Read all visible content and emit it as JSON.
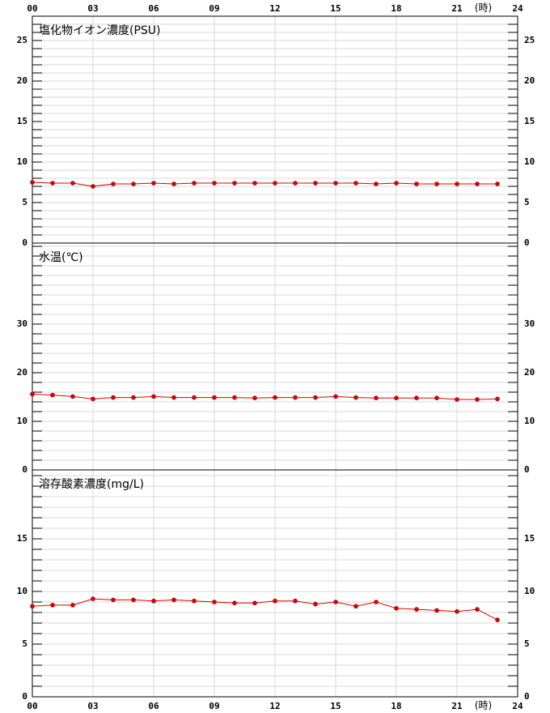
{
  "chart_data": [
    {
      "type": "line",
      "title": "塩化物イオン濃度(PSU)",
      "color": "#e00000",
      "x": [
        0,
        1,
        2,
        3,
        4,
        5,
        6,
        7,
        8,
        9,
        10,
        11,
        12,
        13,
        14,
        15,
        16,
        17,
        18,
        19,
        20,
        21,
        22,
        23
      ],
      "values": [
        7.5,
        7.4,
        7.4,
        7.0,
        7.3,
        7.3,
        7.4,
        7.3,
        7.4,
        7.4,
        7.4,
        7.4,
        7.4,
        7.4,
        7.4,
        7.4,
        7.4,
        7.3,
        7.4,
        7.3,
        7.3,
        7.3,
        7.3,
        7.3
      ],
      "xlim": [
        0,
        24
      ],
      "xticks": [
        {
          "value": 0,
          "label": "00"
        },
        {
          "value": 3,
          "label": "03"
        },
        {
          "value": 6,
          "label": "06"
        },
        {
          "value": 9,
          "label": "09"
        },
        {
          "value": 12,
          "label": "12"
        },
        {
          "value": 15,
          "label": "15"
        },
        {
          "value": 18,
          "label": "18"
        },
        {
          "value": 21,
          "label": "21"
        },
        24
      ],
      "x_unit": "(時)",
      "ylim": [
        0,
        28
      ],
      "yticks": [
        0,
        5,
        10,
        15,
        20,
        25
      ],
      "minor_yticks": [
        1,
        2,
        3,
        4,
        6,
        7,
        8,
        9,
        11,
        12,
        13,
        14,
        16,
        17,
        18,
        19,
        21,
        22,
        23,
        24,
        26,
        27
      ],
      "grid": true
    },
    {
      "type": "line",
      "title": "水温(℃)",
      "color": "#e00000",
      "x": [
        0,
        1,
        2,
        3,
        4,
        5,
        6,
        7,
        8,
        9,
        10,
        11,
        12,
        13,
        14,
        15,
        16,
        17,
        18,
        19,
        20,
        21,
        22,
        23
      ],
      "values": [
        15.6,
        15.4,
        15.1,
        14.6,
        14.9,
        14.9,
        15.1,
        14.9,
        14.9,
        14.9,
        14.9,
        14.8,
        14.9,
        14.9,
        14.9,
        15.1,
        14.9,
        14.8,
        14.8,
        14.8,
        14.8,
        14.5,
        14.5,
        14.6
      ],
      "xlim": [
        0,
        24
      ],
      "ylim": [
        0,
        46.67
      ],
      "yticks": [
        0,
        10,
        20,
        30
      ],
      "minor_yticks": [
        2,
        4,
        6,
        8,
        12,
        14,
        16,
        18,
        22,
        24,
        26,
        28,
        32,
        34,
        36,
        38,
        40,
        42,
        44,
        46
      ],
      "grid": true
    },
    {
      "type": "line",
      "title": "溶存酸素濃度(mg/L)",
      "color": "#e00000",
      "x": [
        0,
        1,
        2,
        3,
        4,
        5,
        6,
        7,
        8,
        9,
        10,
        11,
        12,
        13,
        14,
        15,
        16,
        17,
        18,
        19,
        20,
        21,
        22,
        23
      ],
      "values": [
        8.6,
        8.7,
        8.7,
        9.3,
        9.2,
        9.2,
        9.1,
        9.2,
        9.1,
        9.0,
        8.9,
        8.9,
        9.1,
        9.1,
        8.8,
        9.0,
        8.6,
        9.0,
        8.4,
        8.3,
        8.2,
        8.1,
        8.3,
        7.3
      ],
      "xlim": [
        0,
        24
      ],
      "xticks": [
        {
          "value": 0,
          "label": "00"
        },
        {
          "value": 3,
          "label": "03"
        },
        {
          "value": 6,
          "label": "06"
        },
        {
          "value": 9,
          "label": "09"
        },
        {
          "value": 12,
          "label": "12"
        },
        {
          "value": 15,
          "label": "15"
        },
        {
          "value": 18,
          "label": "18"
        },
        {
          "value": 21,
          "label": "21"
        },
        24
      ],
      "x_unit": "(時)",
      "ylim": [
        0,
        21.54
      ],
      "yticks": [
        0,
        5,
        10,
        15
      ],
      "minor_yticks": [
        1,
        2,
        3,
        4,
        6,
        7,
        8,
        9,
        11,
        12,
        13,
        14,
        16,
        17,
        18,
        19,
        20,
        21
      ],
      "grid": true
    }
  ]
}
